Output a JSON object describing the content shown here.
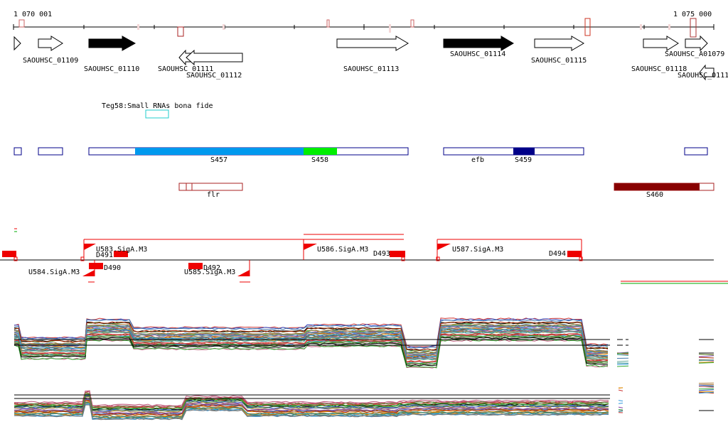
{
  "ruler": {
    "start": "1 070 001",
    "end": "1 075 000"
  },
  "genes": [
    {
      "label": "SAOUHSC_01109"
    },
    {
      "label": "SAOUHSC_01110"
    },
    {
      "label": "SAOUHSC_01111"
    },
    {
      "label": "SAOUHSC_01112"
    },
    {
      "label": "SAOUHSC_01113"
    },
    {
      "label": "SAOUHSC_01114"
    },
    {
      "label": "SAOUHSC_01115"
    },
    {
      "label": "SAOUHSC_01118"
    },
    {
      "label": "SAOUHSC_A01079"
    },
    {
      "label": "SAOUHSC_0111"
    }
  ],
  "srna_track": {
    "label": "Teg58:Small RNAs bona fide"
  },
  "segments": [
    {
      "label": "S457",
      "color": "#0099ee"
    },
    {
      "label": "S458",
      "color": "#00ee00"
    },
    {
      "label": "efb"
    },
    {
      "label": "S459",
      "color": "#000088"
    },
    {
      "label": "flr"
    },
    {
      "label": "S460",
      "color": "#880000"
    }
  ],
  "promoters": [
    {
      "label": "U583.SigA.M3"
    },
    {
      "label": "U584.SigA.M3"
    },
    {
      "label": "U585.SigA.M3"
    },
    {
      "label": "U586.SigA.M3"
    },
    {
      "label": "U587.SigA.M3"
    }
  ],
  "terminators": [
    {
      "label": "D490"
    },
    {
      "label": "D491"
    },
    {
      "label": "D492"
    },
    {
      "label": "D493"
    },
    {
      "label": "D494"
    }
  ],
  "colors": {
    "accent_red": "#ee0000",
    "outline_blue": "#000088",
    "outline_red": "#aa2222",
    "cyan": "#22cccc"
  }
}
